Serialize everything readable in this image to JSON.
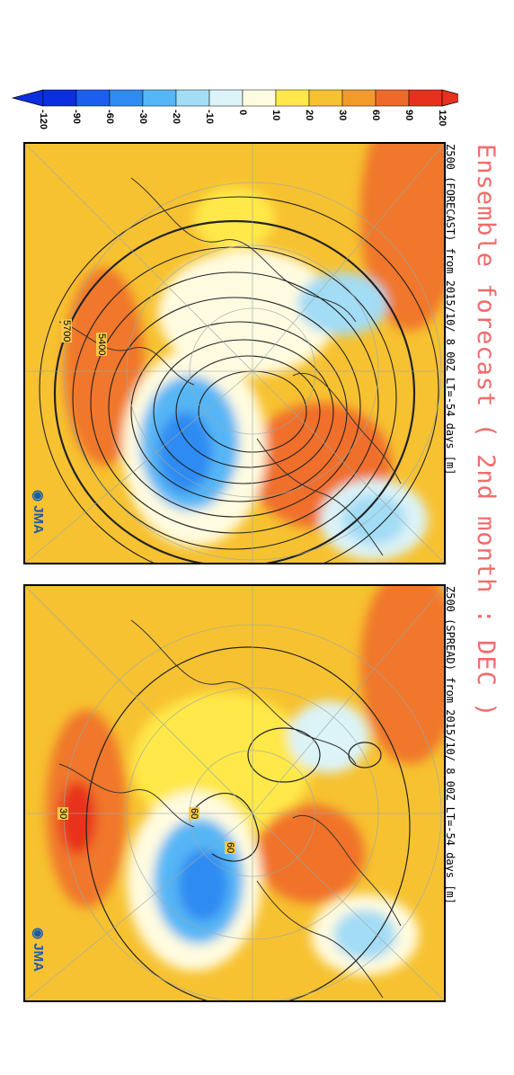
{
  "title": "Ensemble forecast ( 2nd month : DEC )",
  "colorbar": {
    "ticks": [
      "-120",
      "-90",
      "-60",
      "-30",
      "-20",
      "-10",
      "0",
      "10",
      "20",
      "30",
      "60",
      "90",
      "120"
    ],
    "colors": [
      "#0b2ee0",
      "#1c5ff0",
      "#2f8bf2",
      "#57b6f5",
      "#a3dcf5",
      "#dcf3f7",
      "#fffbe0",
      "#ffe84a",
      "#f7c231",
      "#f39b2a",
      "#ef6a2a",
      "#e8301e"
    ]
  },
  "panels": [
    {
      "header": "Z500 (FORECAST) from 2015/10/ 8 00Z LT=-54 days [m]",
      "contour_labels": [
        "5400",
        "5700"
      ],
      "logo": "JMA"
    },
    {
      "header": "Z500 (SPREAD) from 2015/10/ 8 00Z LT=-54 days [m]",
      "contour_labels": [
        "60",
        "60",
        "30"
      ],
      "logo": "JMA"
    }
  ]
}
